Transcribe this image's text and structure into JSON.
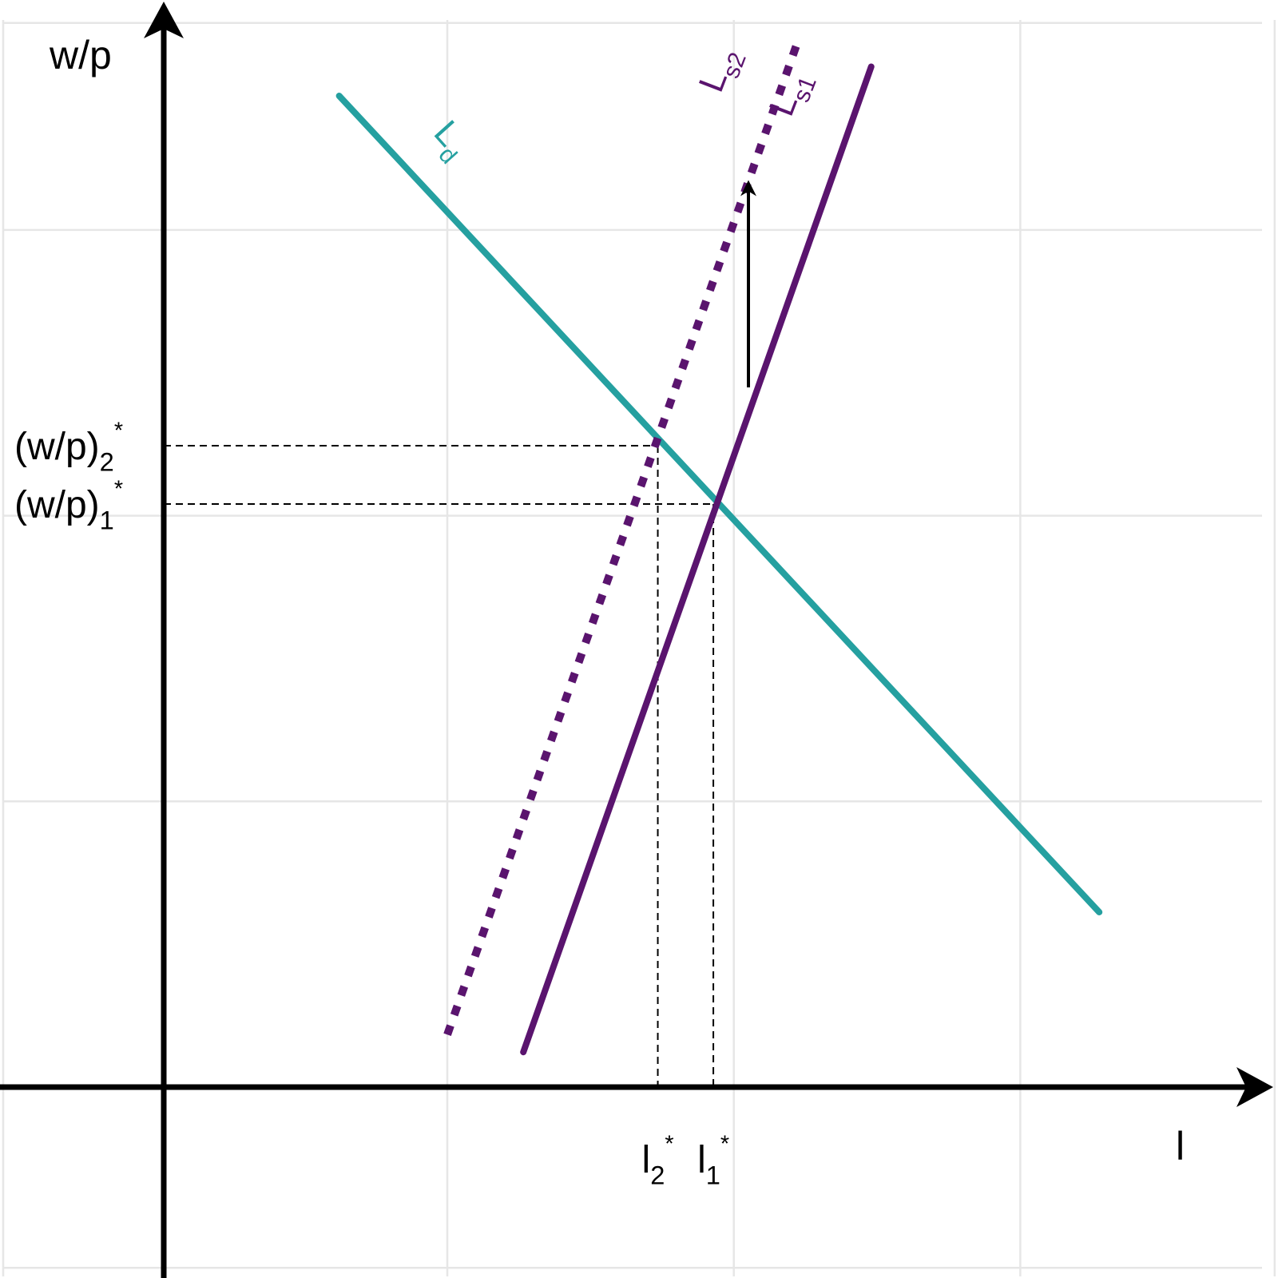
{
  "chart_data": {
    "type": "line",
    "title": "",
    "xlabel": "l",
    "ylabel": "w/p",
    "xlim": [
      -0.55,
      3.8
    ],
    "ylim": [
      -0.65,
      3.7
    ],
    "grid": true,
    "legend": "none",
    "series": [
      {
        "name": "L_d",
        "color": "#25a0a0",
        "style": "solid",
        "x": [
          0.6,
          3.2
        ],
        "y": [
          3.4,
          0.6
        ]
      },
      {
        "name": "L_s1",
        "color": "#5a146e",
        "style": "solid",
        "x": [
          1.23,
          2.42
        ],
        "y": [
          0.12,
          3.5
        ]
      },
      {
        "name": "L_s2",
        "color": "#5a146e",
        "style": "dotted",
        "x": [
          0.97,
          2.17
        ],
        "y": [
          0.18,
          3.59
        ]
      }
    ],
    "equilibria": [
      {
        "x": 1.88,
        "y": 2.0,
        "x_label_main": "l",
        "x_label_sub": "1",
        "y_label_main": "(w/p)",
        "y_label_sub": "1",
        "star": "*"
      },
      {
        "x": 1.69,
        "y": 2.2,
        "x_label_main": "l",
        "x_label_sub": "2",
        "y_label_main": "(w/p)",
        "y_label_sub": "2",
        "star": "*"
      }
    ],
    "shift_arrow": {
      "x": [
        2.0,
        2.0
      ],
      "y": [
        2.4,
        3.1
      ]
    },
    "curve_labels": [
      {
        "series": "L_d",
        "main": "L",
        "sub": "d"
      },
      {
        "series": "L_s1",
        "main": "L",
        "sub": "s1"
      },
      {
        "series": "L_s2",
        "main": "L",
        "sub": "s2"
      }
    ]
  }
}
